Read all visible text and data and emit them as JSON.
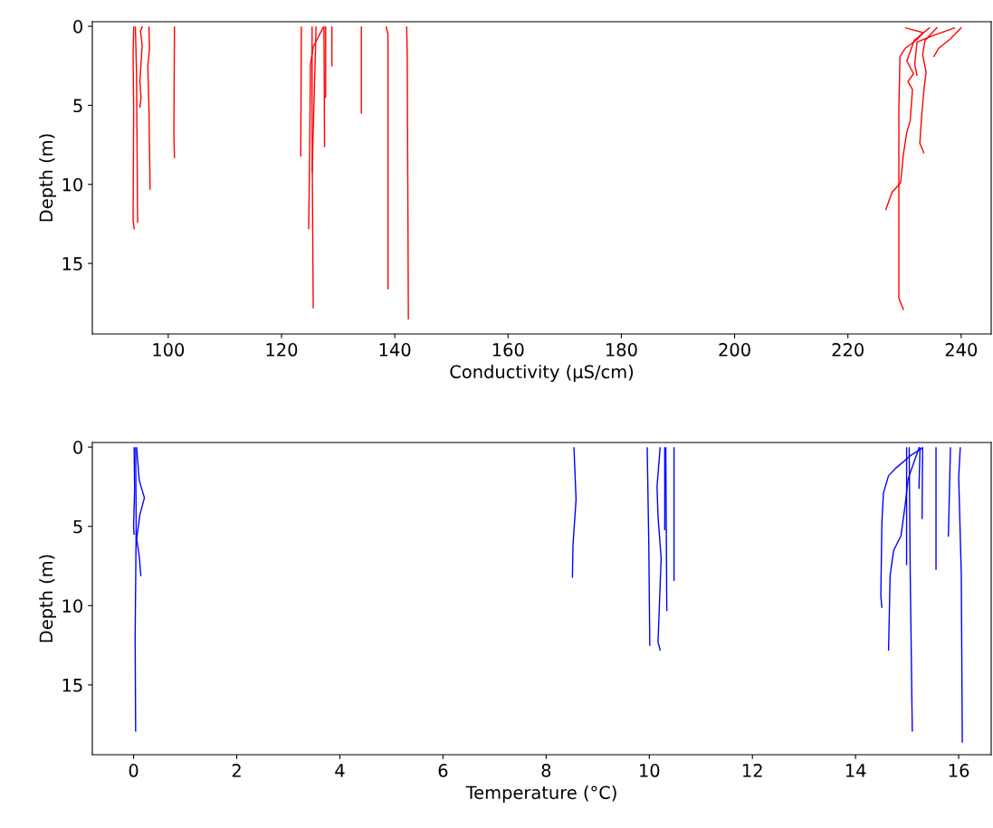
{
  "chart_data": [
    {
      "type": "line",
      "xlabel": "Conductivity (µS/cm)",
      "ylabel": "Depth (m)",
      "xlim": [
        86.6,
        245.3
      ],
      "xticks": [
        100,
        120,
        140,
        160,
        180,
        200,
        220,
        240
      ],
      "ylim": [
        19.46,
        -0.29
      ],
      "yticks": [
        0,
        5,
        10,
        15
      ],
      "grid": false,
      "marker": "none",
      "line_style": "solid",
      "series": [
        {
          "color": "#ff0000",
          "x": [
            93.9,
            93.8,
            93.9,
            93.8,
            93.8,
            94.0
          ],
          "values": [
            0.05,
            1.9,
            5.2,
            12.1,
            12.3,
            12.8
          ]
        },
        {
          "color": "#ff0000",
          "x": [
            94.2,
            94.4,
            94.6
          ],
          "values": [
            0.05,
            2.9,
            12.4
          ]
        },
        {
          "color": "#ff0000",
          "x": [
            95.4,
            95.1,
            95.4,
            95.0,
            95.2,
            95.0
          ],
          "values": [
            0.05,
            0.3,
            1.2,
            3.5,
            4.5,
            5.1
          ]
        },
        {
          "color": "#ff0000",
          "x": [
            96.6,
            96.7,
            96.4,
            96.6,
            96.8
          ],
          "values": [
            0.05,
            1.4,
            2.5,
            5.2,
            10.3
          ]
        },
        {
          "color": "#ff0000",
          "x": [
            101.1,
            101.0,
            101.1
          ],
          "values": [
            0.05,
            6.9,
            8.3
          ]
        },
        {
          "color": "#ff0000",
          "x": [
            123.5,
            123.4
          ],
          "values": [
            0.05,
            8.2
          ]
        },
        {
          "color": "#ff0000",
          "x": [
            125.4,
            125.4,
            125.6
          ],
          "values": [
            0.05,
            6.9,
            17.8
          ]
        },
        {
          "color": "#ff0000",
          "x": [
            127.4,
            125.6,
            125.1,
            125.0,
            124.8
          ],
          "values": [
            0.05,
            1.3,
            2.4,
            6.9,
            12.8
          ]
        },
        {
          "color": "#ff0000",
          "x": [
            126.1,
            125.8,
            125.4
          ],
          "values": [
            0.05,
            4.1,
            9.2
          ]
        },
        {
          "color": "#ff0000",
          "x": [
            127.8,
            127.8
          ],
          "values": [
            0.05,
            4.5
          ]
        },
        {
          "color": "#ff0000",
          "x": [
            127.5,
            127.6
          ],
          "values": [
            0.05,
            7.6
          ]
        },
        {
          "color": "#ff0000",
          "x": [
            128.9,
            128.9
          ],
          "values": [
            0.05,
            2.5
          ]
        },
        {
          "color": "#ff0000",
          "x": [
            134.1,
            134.1
          ],
          "values": [
            0.05,
            5.5
          ]
        },
        {
          "color": "#ff0000",
          "x": [
            138.5,
            138.8,
            138.8
          ],
          "values": [
            0.05,
            0.5,
            16.6
          ]
        },
        {
          "color": "#ff0000",
          "x": [
            142.1,
            142.2,
            142.4
          ],
          "values": [
            0.05,
            1.8,
            18.5
          ]
        },
        {
          "color": "#ff0000",
          "x": [
            230.2,
            233.3,
            232.0,
            230.1,
            229.2,
            229.0,
            229.0,
            229.8
          ],
          "values": [
            0.1,
            0.4,
            0.9,
            1.4,
            1.9,
            5.2,
            17.2,
            17.9
          ]
        },
        {
          "color": "#ff0000",
          "x": [
            234.4,
            231.7,
            230.4,
            231.6,
            230.6,
            231.4,
            231.0,
            230.4,
            229.8,
            229.3,
            227.8,
            226.7
          ],
          "values": [
            0.1,
            0.9,
            2.2,
            3.0,
            3.5,
            4.0,
            6.0,
            6.7,
            8.1,
            9.9,
            10.5,
            11.6
          ]
        },
        {
          "color": "#ff0000",
          "x": [
            235.7,
            233.6,
            233.2,
            233.8,
            233.4,
            233.0,
            232.7,
            233.4
          ],
          "values": [
            0.1,
            0.9,
            1.8,
            2.9,
            4.1,
            5.8,
            7.4,
            8.0
          ]
        },
        {
          "color": "#ff0000",
          "x": [
            238.8,
            234.9,
            232.2,
            231.8,
            232.2
          ],
          "values": [
            0.1,
            0.6,
            1.0,
            2.4,
            3.1
          ]
        },
        {
          "color": "#ff0000",
          "x": [
            240.0,
            238.1,
            236.0,
            235.2
          ],
          "values": [
            0.1,
            0.8,
            1.4,
            1.9
          ]
        }
      ]
    },
    {
      "type": "line",
      "xlabel": "Temperature (°C)",
      "ylabel": "Depth (m)",
      "xlim": [
        -0.8,
        16.63
      ],
      "xticks": [
        0,
        2,
        4,
        6,
        8,
        10,
        12,
        14,
        16
      ],
      "ylim": [
        19.4,
        -0.29
      ],
      "yticks": [
        0,
        5,
        10,
        15
      ],
      "grid": false,
      "marker": "none",
      "line_style": "solid",
      "series": [
        {
          "color": "#0000ff",
          "x": [
            0.04,
            0.05,
            0.03,
            0.04
          ],
          "values": [
            0.05,
            5.0,
            12.0,
            17.9
          ]
        },
        {
          "color": "#0000ff",
          "x": [
            0.06,
            0.11,
            0.21,
            0.12,
            0.06,
            0.11,
            0.14
          ],
          "values": [
            0.05,
            2.1,
            3.2,
            4.3,
            5.8,
            6.9,
            8.1
          ]
        },
        {
          "color": "#0000ff",
          "x": [
            0.01,
            0.02,
            0.0,
            0.01
          ],
          "values": [
            0.05,
            2.6,
            5.0,
            5.5
          ]
        },
        {
          "color": "#0000ff",
          "x": [
            8.54,
            8.58,
            8.52,
            8.51
          ],
          "values": [
            0.05,
            3.3,
            6.2,
            8.2
          ]
        },
        {
          "color": "#0000ff",
          "x": [
            9.96,
            9.99,
            10.01
          ],
          "values": [
            0.05,
            6.0,
            12.5
          ]
        },
        {
          "color": "#0000ff",
          "x": [
            10.21,
            10.15,
            10.17,
            10.23,
            10.17,
            10.21
          ],
          "values": [
            0.05,
            2.5,
            4.4,
            7.0,
            12.3,
            12.8
          ]
        },
        {
          "color": "#0000ff",
          "x": [
            10.32,
            10.34
          ],
          "values": [
            0.05,
            10.3
          ]
        },
        {
          "color": "#0000ff",
          "x": [
            10.3,
            10.3
          ],
          "values": [
            0.05,
            5.2
          ]
        },
        {
          "color": "#0000ff",
          "x": [
            10.48,
            10.48
          ],
          "values": [
            0.05,
            8.4
          ]
        },
        {
          "color": "#0000ff",
          "x": [
            15.04,
            15.06,
            15.1
          ],
          "values": [
            0.05,
            8.0,
            17.9
          ]
        },
        {
          "color": "#0000ff",
          "x": [
            16.03,
            16.0,
            16.05,
            16.07
          ],
          "values": [
            0.05,
            1.9,
            8.0,
            18.6
          ]
        },
        {
          "color": "#0000ff",
          "x": [
            15.3,
            15.08,
            14.79,
            14.64,
            14.54,
            14.51,
            14.49,
            14.51
          ],
          "values": [
            0.05,
            0.5,
            1.3,
            1.8,
            2.9,
            4.8,
            9.4,
            10.1
          ]
        },
        {
          "color": "#0000ff",
          "x": [
            15.23,
            15.02,
            14.96,
            14.88,
            14.74,
            14.67,
            14.64
          ],
          "values": [
            0.05,
            2.0,
            3.7,
            5.6,
            6.5,
            8.1,
            12.8
          ]
        },
        {
          "color": "#0000ff",
          "x": [
            14.99,
            14.99
          ],
          "values": [
            0.05,
            7.4
          ]
        },
        {
          "color": "#0000ff",
          "x": [
            15.25,
            15.23
          ],
          "values": [
            0.05,
            2.6
          ]
        },
        {
          "color": "#0000ff",
          "x": [
            15.3,
            15.29
          ],
          "values": [
            0.05,
            4.5
          ]
        },
        {
          "color": "#0000ff",
          "x": [
            15.56,
            15.56
          ],
          "values": [
            0.05,
            7.7
          ]
        },
        {
          "color": "#0000ff",
          "x": [
            15.84,
            15.8
          ],
          "values": [
            0.05,
            5.6
          ]
        }
      ]
    }
  ]
}
